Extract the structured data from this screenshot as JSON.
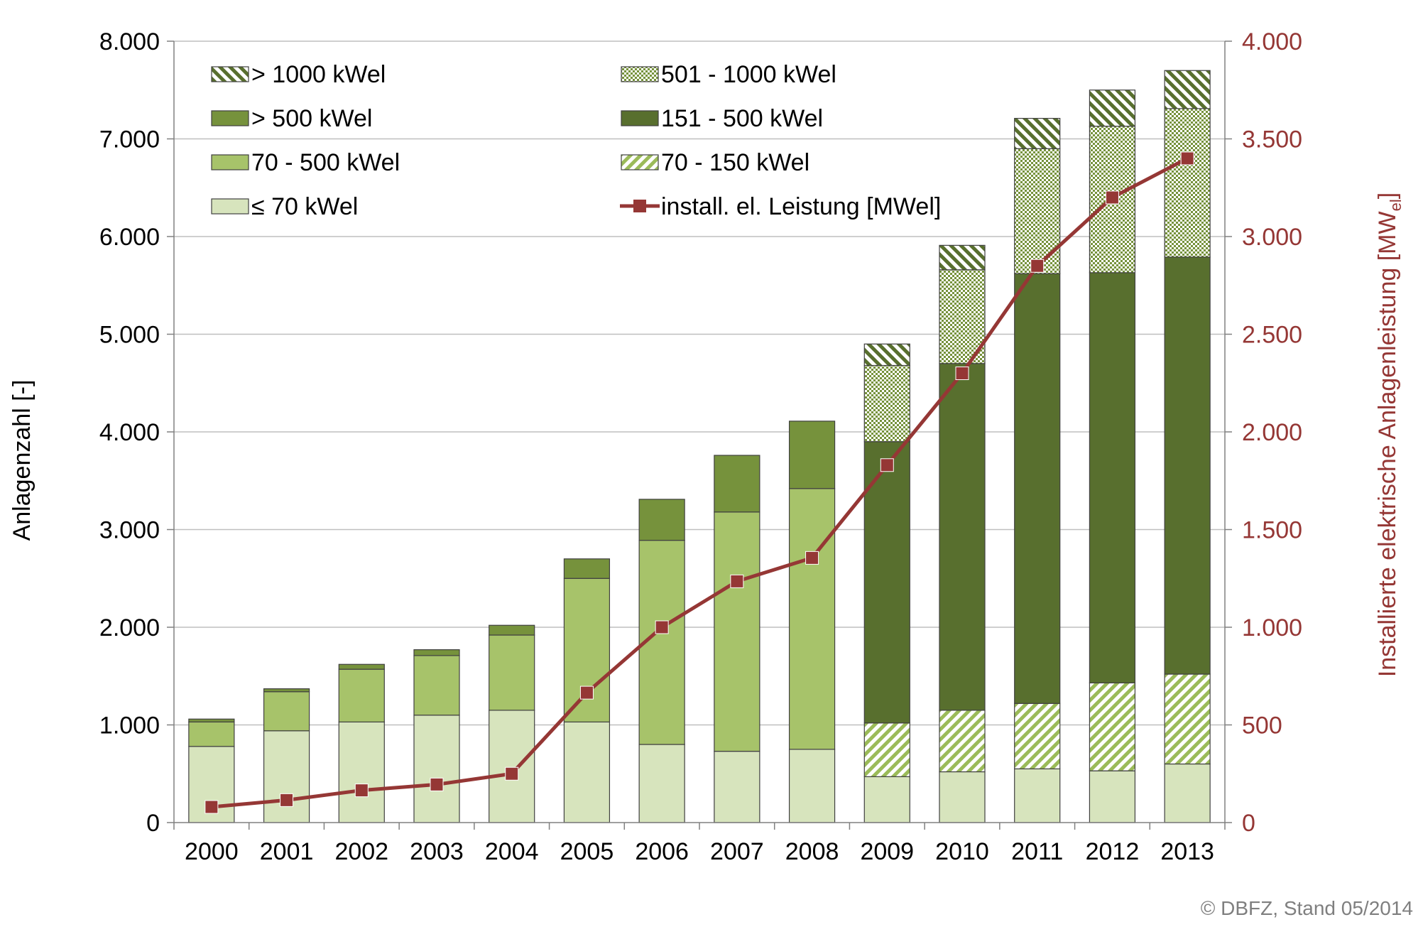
{
  "chart_data": {
    "type": "bar",
    "stacked": true,
    "categories": [
      "2000",
      "2001",
      "2002",
      "2003",
      "2004",
      "2005",
      "2006",
      "2007",
      "2008",
      "2009",
      "2010",
      "2011",
      "2012",
      "2013"
    ],
    "y_left": {
      "label": "Anlagenzahl [-]",
      "ylim": [
        0,
        8000
      ],
      "ticks": [
        0,
        1000,
        2000,
        3000,
        4000,
        5000,
        6000,
        7000,
        8000
      ],
      "tick_labels": [
        "0",
        "1.000",
        "2.000",
        "3.000",
        "4.000",
        "5.000",
        "6.000",
        "7.000",
        "8.000"
      ]
    },
    "y_right": {
      "label_main": "Installierte elektrische Anlagenleistung [MW",
      "label_sub": "el",
      "label_end": "]",
      "ylim": [
        0,
        4000
      ],
      "ticks": [
        0,
        500,
        1000,
        1500,
        2000,
        2500,
        3000,
        3500,
        4000
      ],
      "tick_labels": [
        "0",
        "500",
        "1.000",
        "1.500",
        "2.000",
        "2.500",
        "3.000",
        "3.500",
        "4.000"
      ],
      "color": "#953735"
    },
    "grid": true,
    "legend_position": "top-left",
    "series": [
      {
        "key": "s_le70",
        "name": "≤ 70 kWel",
        "color": "#d7e4bd",
        "pattern": "solid",
        "values": [
          780,
          940,
          1030,
          1100,
          1150,
          1030,
          800,
          730,
          750,
          470,
          520,
          550,
          530,
          600
        ]
      },
      {
        "key": "s_70_500",
        "name": "70 - 500 kWel",
        "color": "#a7c36a",
        "pattern": "solid",
        "values": [
          250,
          400,
          540,
          610,
          770,
          1470,
          2090,
          2450,
          2670,
          0,
          0,
          0,
          0,
          0
        ]
      },
      {
        "key": "s_gt500",
        "name": "> 500 kWel",
        "color": "#76923c",
        "pattern": "solid",
        "values": [
          30,
          30,
          50,
          60,
          100,
          200,
          420,
          580,
          690,
          0,
          0,
          0,
          0,
          0
        ]
      },
      {
        "key": "s_70_150",
        "name": "70 - 150 kWel",
        "color": "#9bbb59",
        "pattern": "diagonal",
        "values": [
          0,
          0,
          0,
          0,
          0,
          0,
          0,
          0,
          0,
          550,
          630,
          670,
          900,
          920
        ]
      },
      {
        "key": "s_151_500",
        "name": "151 - 500 kWel",
        "color": "#586f2e",
        "pattern": "solid",
        "values": [
          0,
          0,
          0,
          0,
          0,
          0,
          0,
          0,
          0,
          2880,
          3550,
          4400,
          4200,
          4270
        ]
      },
      {
        "key": "s_501_1000",
        "name": "501 - 1000 kWel",
        "color": "#76923c",
        "pattern": "checker",
        "values": [
          0,
          0,
          0,
          0,
          0,
          0,
          0,
          0,
          0,
          780,
          960,
          1280,
          1500,
          1520
        ]
      },
      {
        "key": "s_gt1000",
        "name": "> 1000 kWel",
        "color": "#586f2e",
        "pattern": "diagonal-dark",
        "values": [
          0,
          0,
          0,
          0,
          0,
          0,
          0,
          0,
          0,
          220,
          250,
          310,
          370,
          390
        ]
      }
    ],
    "line_series": {
      "name": "install. el. Leistung [MWel]",
      "axis": "right",
      "color": "#953735",
      "values": [
        80,
        115,
        165,
        195,
        250,
        665,
        1000,
        1235,
        1355,
        1830,
        2300,
        2850,
        3200,
        3400
      ]
    },
    "legend_order": [
      "s_gt1000",
      "s_501_1000",
      "s_gt500",
      "s_151_500",
      "s_70_500",
      "s_70_150",
      "s_le70",
      "line"
    ],
    "copyright": "© DBFZ, Stand 05/2014"
  }
}
